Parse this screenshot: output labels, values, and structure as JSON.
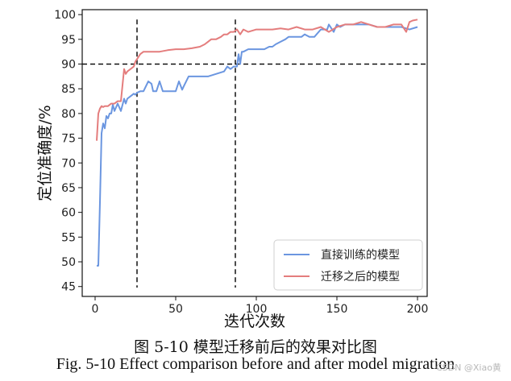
{
  "chart_data": {
    "type": "line",
    "xlabel": "迭代次数",
    "ylabel": "定位准确度/%",
    "xlim": [
      -8,
      206
    ],
    "ylim": [
      43,
      101
    ],
    "xticks": [
      0,
      50,
      100,
      150,
      200
    ],
    "yticks": [
      45,
      50,
      55,
      60,
      65,
      70,
      75,
      80,
      85,
      90,
      95,
      100
    ],
    "grid": false,
    "legend_position": "bottom-right",
    "series": [
      {
        "name": "直接训练的模型",
        "color": "#6b96e0",
        "x": [
          1,
          2,
          3,
          4,
          5,
          6,
          7,
          8,
          9,
          10,
          11,
          12,
          14,
          16,
          18,
          19,
          20,
          22,
          24,
          25,
          26,
          28,
          30,
          33,
          35,
          36,
          38,
          40,
          42,
          44,
          46,
          48,
          50,
          52,
          54,
          55,
          58,
          60,
          65,
          70,
          75,
          80,
          82,
          84,
          86,
          88,
          89,
          90,
          91,
          92,
          95,
          100,
          105,
          108,
          110,
          112,
          115,
          118,
          120,
          124,
          128,
          130,
          133,
          136,
          140,
          144,
          145,
          148,
          150,
          152,
          155,
          160,
          165,
          170,
          175,
          180,
          185,
          190,
          195,
          200
        ],
        "values": [
          49.2,
          49.2,
          62.0,
          76.0,
          78.0,
          77.0,
          79.5,
          79.0,
          80.0,
          80.0,
          81.8,
          80.5,
          82.0,
          80.5,
          83.0,
          82.0,
          83.0,
          83.5,
          84.0,
          83.8,
          84.2,
          84.5,
          84.5,
          86.5,
          86.0,
          84.5,
          84.5,
          86.5,
          84.5,
          84.5,
          84.5,
          84.5,
          84.5,
          86.5,
          84.8,
          85.5,
          87.5,
          87.5,
          87.5,
          87.5,
          88.0,
          88.5,
          89.5,
          89.0,
          89.5,
          89.5,
          92.0,
          90.0,
          92.5,
          92.5,
          93.0,
          93.0,
          93.0,
          93.5,
          93.5,
          94.0,
          94.5,
          95.0,
          95.5,
          95.5,
          95.5,
          96.0,
          95.5,
          95.5,
          97.0,
          97.0,
          98.0,
          96.5,
          98.0,
          97.5,
          98.0,
          98.0,
          98.0,
          98.0,
          97.5,
          97.5,
          97.5,
          97.5,
          97.0,
          97.5
        ]
      },
      {
        "name": "迁移之后的模型",
        "color": "#e47d7d",
        "x": [
          1,
          2,
          3,
          4,
          5,
          6,
          8,
          10,
          12,
          14,
          16,
          18,
          19,
          20,
          22,
          24,
          25,
          26,
          27,
          28,
          30,
          32,
          35,
          40,
          45,
          50,
          55,
          60,
          65,
          68,
          70,
          72,
          75,
          78,
          80,
          82,
          84,
          86,
          88,
          90,
          92,
          95,
          100,
          105,
          110,
          115,
          120,
          125,
          130,
          135,
          140,
          145,
          150,
          155,
          160,
          165,
          170,
          175,
          180,
          185,
          190,
          193,
          195,
          197,
          200
        ],
        "values": [
          74.5,
          80.0,
          81.0,
          81.5,
          81.3,
          81.5,
          81.5,
          82.0,
          82.0,
          82.5,
          82.5,
          89.0,
          88.0,
          88.5,
          89.0,
          89.5,
          90.5,
          91.0,
          91.5,
          92.0,
          92.5,
          92.5,
          92.5,
          92.5,
          92.8,
          93.0,
          93.0,
          93.2,
          93.5,
          94.0,
          94.5,
          95.0,
          95.0,
          95.5,
          96.0,
          96.0,
          96.5,
          96.5,
          97.0,
          96.0,
          97.0,
          96.5,
          97.0,
          97.0,
          97.0,
          97.2,
          97.0,
          97.5,
          97.0,
          97.0,
          97.5,
          96.5,
          97.5,
          98.0,
          98.0,
          98.5,
          98.0,
          97.5,
          97.5,
          98.0,
          98.0,
          96.5,
          98.5,
          98.8,
          99.0
        ]
      }
    ],
    "reference_lines": [
      {
        "orientation": "horizontal",
        "value": 90
      },
      {
        "orientation": "vertical",
        "value": 26
      },
      {
        "orientation": "vertical",
        "value": 87
      }
    ]
  },
  "caption": {
    "chinese": "图 5-10 模型迁移前后的效果对比图",
    "english": "Fig. 5-10 Effect comparison before and after model migration"
  },
  "watermark": "CSDN @Xiao黄"
}
